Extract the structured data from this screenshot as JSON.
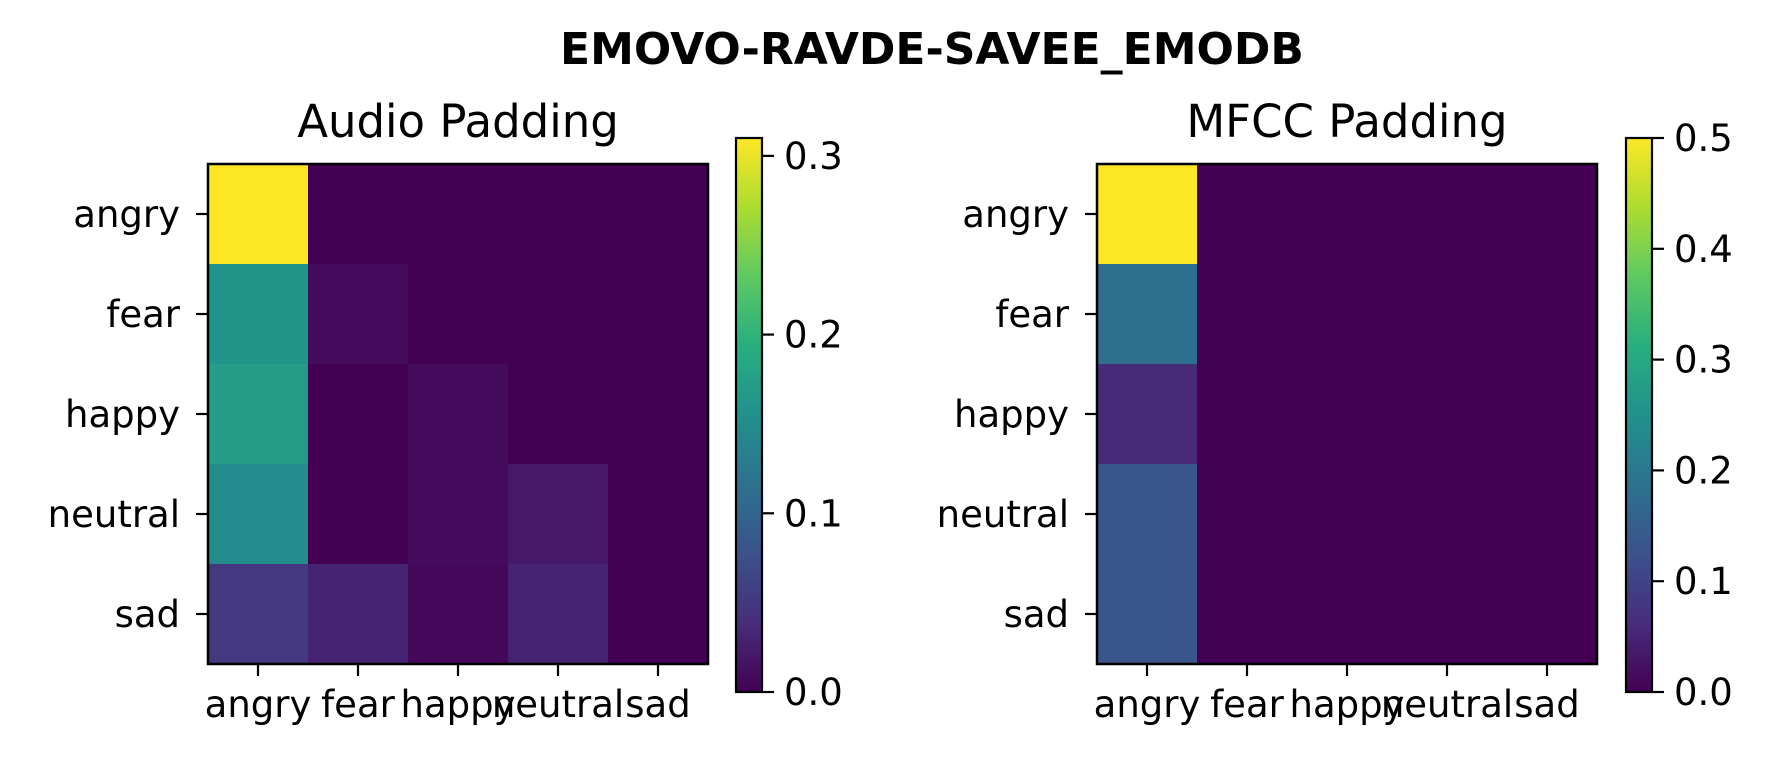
{
  "figure": {
    "title": "EMOVO-RAVDE-SAVEE_EMODB"
  },
  "chart_data": [
    {
      "type": "heatmap",
      "title": "Audio Padding",
      "x_labels": [
        "angry",
        "fear",
        "happy",
        "neutral",
        "sad"
      ],
      "y_labels": [
        "angry",
        "fear",
        "happy",
        "neutral",
        "sad"
      ],
      "values": [
        [
          0.31,
          0.0,
          0.0,
          0.0,
          0.0
        ],
        [
          0.16,
          0.01,
          0.0,
          0.0,
          0.0
        ],
        [
          0.17,
          0.0,
          0.01,
          0.0,
          0.0
        ],
        [
          0.15,
          0.0,
          0.01,
          0.02,
          0.0
        ],
        [
          0.05,
          0.03,
          0.005,
          0.03,
          0.0
        ]
      ],
      "colorbar": {
        "min": 0.0,
        "max": 0.31,
        "ticks": [
          "0.0",
          "0.1",
          "0.2",
          "0.3"
        ]
      },
      "colormap": "viridis"
    },
    {
      "type": "heatmap",
      "title": "MFCC Padding",
      "x_labels": [
        "angry",
        "fear",
        "happy",
        "neutral",
        "sad"
      ],
      "y_labels": [
        "angry",
        "fear",
        "happy",
        "neutral",
        "sad"
      ],
      "values": [
        [
          0.5,
          0.0,
          0.0,
          0.0,
          0.0
        ],
        [
          0.18,
          0.0,
          0.0,
          0.0,
          0.0
        ],
        [
          0.06,
          0.0,
          0.0,
          0.0,
          0.0
        ],
        [
          0.13,
          0.0,
          0.0,
          0.0,
          0.0
        ],
        [
          0.13,
          0.0,
          0.0,
          0.0,
          0.0
        ]
      ],
      "colorbar": {
        "min": 0.0,
        "max": 0.5,
        "ticks": [
          "0.0",
          "0.1",
          "0.2",
          "0.3",
          "0.4",
          "0.5"
        ]
      },
      "colormap": "viridis"
    }
  ]
}
